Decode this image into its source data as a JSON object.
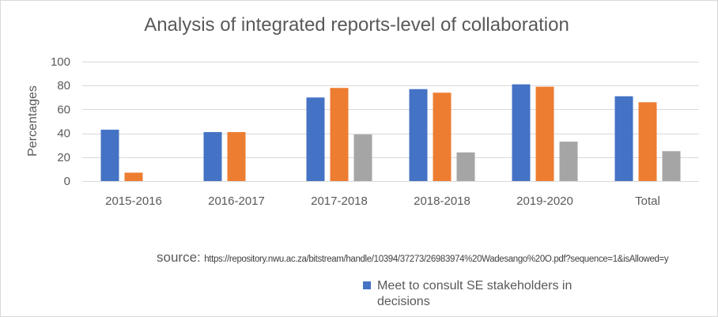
{
  "chart_data": {
    "type": "bar",
    "title": "Analysis of integrated reports-level of collaboration",
    "ylabel": "Percentages",
    "xlabel": "",
    "ylim": [
      0,
      100
    ],
    "yticks": [
      0,
      20,
      40,
      60,
      80,
      100
    ],
    "grid": true,
    "categories": [
      "2015-2016",
      "2016-2017",
      "2017-2018",
      "2018-2018",
      "2019-2020",
      "Total"
    ],
    "series": [
      {
        "name": "Meet to consult SE stakeholders in decisions",
        "color": "#4472C4",
        "values": [
          43,
          41,
          70,
          77,
          81,
          71
        ]
      },
      {
        "color": "#ED7D31",
        "values": [
          7,
          41,
          78,
          74,
          79,
          66
        ]
      },
      {
        "color": "#A5A5A5",
        "values": [
          0,
          0,
          39,
          24,
          33,
          25
        ]
      }
    ],
    "legend_position": "bottom",
    "source_label": "source:",
    "source_url": "https://repository.nwu.ac.za/bitstream/handle/10394/37273/26983974%20Wadesango%20O.pdf?sequence=1&isAllowed=y"
  }
}
